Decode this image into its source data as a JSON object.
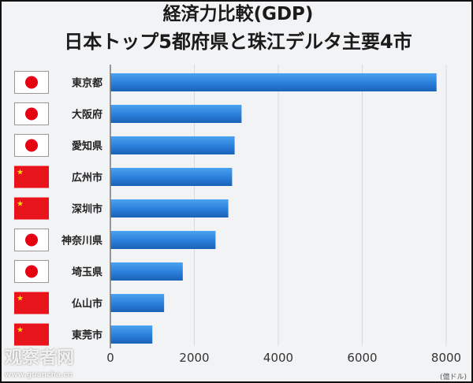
{
  "chart_data": {
    "type": "bar",
    "orientation": "horizontal",
    "title": "経済力比較(GDP)",
    "subtitle": "日本トップ5都府県と珠江デルタ主要4市",
    "categories": [
      "東京都",
      "大阪府",
      "愛知県",
      "広州市",
      "深圳市",
      "神奈川県",
      "埼玉県",
      "仏山市",
      "東莞市"
    ],
    "flags": [
      "japan",
      "japan",
      "japan",
      "china",
      "china",
      "japan",
      "japan",
      "china",
      "china"
    ],
    "values": [
      7770,
      3125,
      2960,
      2900,
      2810,
      2505,
      1725,
      1280,
      1000
    ],
    "xlim": [
      0,
      8000
    ],
    "xticks": [
      "0",
      "2000",
      "4000",
      "6000",
      "8000"
    ],
    "xticks_values": [
      0,
      2000,
      4000,
      6000,
      8000
    ],
    "unit": "(億ドル)",
    "grid": true,
    "bar_color": "#2a7fd9"
  },
  "watermark": {
    "line1": "观察者网",
    "line2": "www.guancha.cn"
  }
}
